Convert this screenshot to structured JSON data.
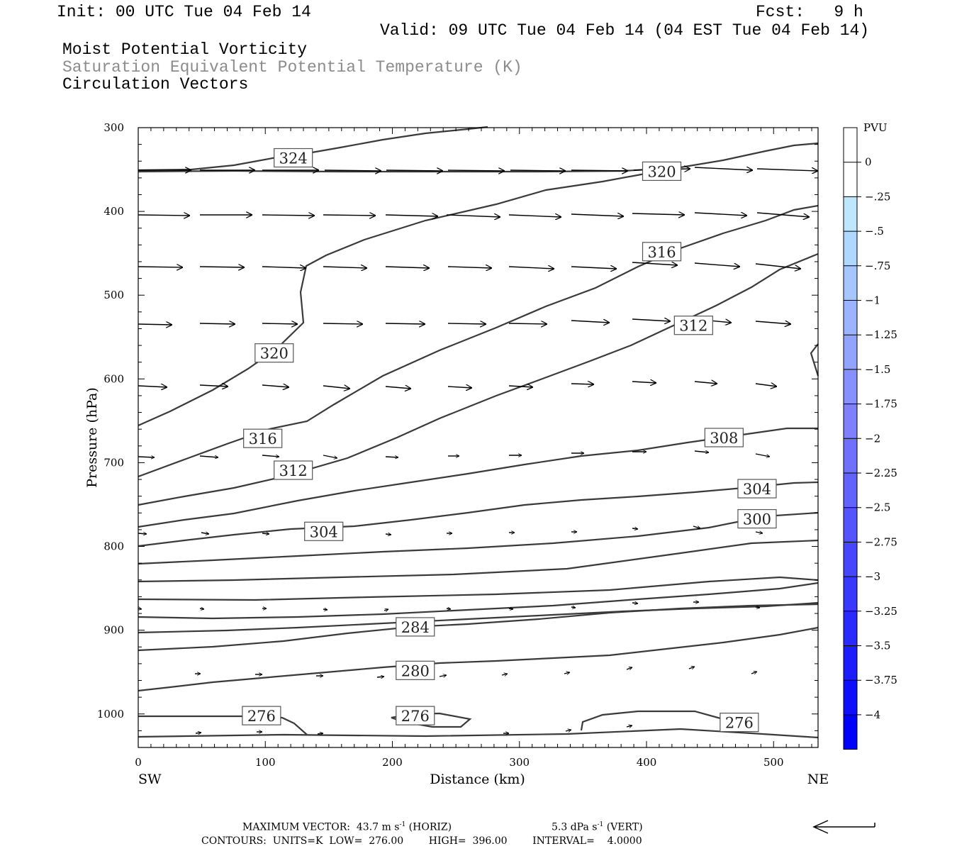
{
  "header": {
    "init": "Init: 00 UTC Tue 04 Feb 14",
    "fcst": "Fcst:   9 h",
    "valid": "Valid: 09 UTC Tue 04 Feb 14 (04 EST Tue 04 Feb 14)",
    "field1": "Moist Potential Vorticity",
    "field2": "Saturation Equivalent Potential Temperature (K)",
    "field3": "Circulation Vectors"
  },
  "chart_data": {
    "type": "line",
    "xlabel": "Distance (km)",
    "ylabel": "Pressure (hPa)",
    "xlim": [
      0,
      535
    ],
    "ylim": [
      1040,
      300
    ],
    "x_ticks": [
      "0",
      "100",
      "200",
      "300",
      "400",
      "500"
    ],
    "x_tick_values": [
      0,
      100,
      200,
      300,
      400,
      500
    ],
    "y_ticks": [
      "300",
      "400",
      "500",
      "600",
      "700",
      "800",
      "900",
      "1000"
    ],
    "y_tick_values": [
      300,
      400,
      500,
      600,
      700,
      800,
      900,
      1000
    ],
    "left_endpoint": "SW",
    "right_endpoint": "NE",
    "contour_labels": [
      {
        "text": "324",
        "x": 122,
        "y": 336
      },
      {
        "text": "320",
        "x": 412,
        "y": 352
      },
      {
        "text": "316",
        "x": 412,
        "y": 448
      },
      {
        "text": "312",
        "x": 437,
        "y": 536
      },
      {
        "text": "320",
        "x": 107,
        "y": 569
      },
      {
        "text": "316",
        "x": 98,
        "y": 671
      },
      {
        "text": "312",
        "x": 122,
        "y": 709
      },
      {
        "text": "308",
        "x": 461,
        "y": 670
      },
      {
        "text": "304",
        "x": 487,
        "y": 731
      },
      {
        "text": "300",
        "x": 487,
        "y": 767
      },
      {
        "text": "304",
        "x": 146,
        "y": 782
      },
      {
        "text": "284",
        "x": 218,
        "y": 896
      },
      {
        "text": "280",
        "x": 218,
        "y": 948
      },
      {
        "text": "276",
        "x": 97,
        "y": 1002
      },
      {
        "text": "276",
        "x": 218,
        "y": 1002
      },
      {
        "text": "276",
        "x": 473,
        "y": 1010
      }
    ],
    "colorbar": {
      "unit": "PVU",
      "labels": [
        "0",
        "-.25",
        "-.5",
        "-.75",
        "-1",
        "-1.25",
        "-1.5",
        "-1.75",
        "-2",
        "-2.25",
        "-2.5",
        "-2.75",
        "-3",
        "-3.25",
        "-3.5",
        "-3.75",
        "-4"
      ],
      "colors": [
        "#ffffff",
        "#ffffff",
        "#bfe6ff",
        "#b0d8ff",
        "#a6c6ff",
        "#9cb4ff",
        "#92a2ff",
        "#8890ff",
        "#7e80ff",
        "#7070ff",
        "#6262ff",
        "#5454ff",
        "#4646ff",
        "#3838ff",
        "#2a2aff",
        "#1c1cff",
        "#0e0eff",
        "#0000ff"
      ]
    },
    "legend_note": "MAXIMUM VECTOR: 43.7 m s-1 (HORIZ) 5.3 dPa s-1 (VERT)"
  },
  "footer": {
    "max_vector_label": "MAXIMUM VECTOR:",
    "horiz": "43.7 m s",
    "horiz_unit": "(HORIZ)",
    "vert": "5.3 dPa s",
    "vert_unit": "(VERT)",
    "exp": "-1",
    "contours": "CONTOURS:  UNITS=K  LOW=  276.00        HIGH=  396.00        INTERVAL=    4.0000"
  }
}
